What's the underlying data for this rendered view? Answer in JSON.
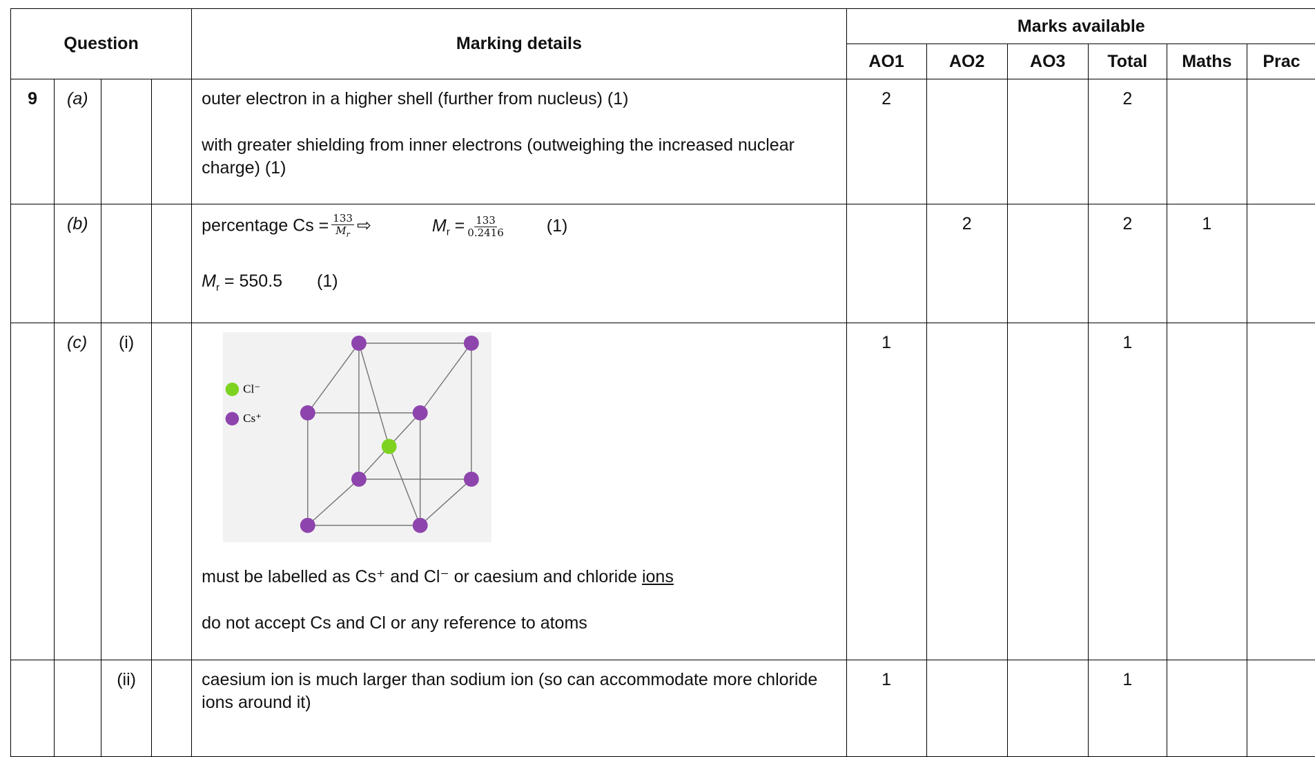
{
  "header": {
    "question": "Question",
    "marking_details": "Marking details",
    "marks_available": "Marks available",
    "columns": [
      "AO1",
      "AO2",
      "AO3",
      "Total",
      "Maths",
      "Prac"
    ]
  },
  "rows": [
    {
      "question": 9,
      "part": "(a)",
      "details": [
        "outer electron in a higher shell (further from nucleus) (1)",
        "with greater shielding from inner electrons (outweighing the increased nuclear charge) (1)"
      ],
      "marks": [
        2,
        null,
        null,
        2,
        null,
        null
      ]
    },
    {
      "part": "(b)",
      "details": [
        {
          "text": "percentage Cs =",
          "frac_num": 133,
          "frac_den": "M",
          "frac_den_sub": "r",
          "arrow": "⇨",
          "lhs": "M",
          "lhs_sub": "r",
          "eq": "=",
          "frac2_num": 133,
          "frac2_den": 0.2416,
          "mark": "(1)"
        },
        {
          "lhs": "M",
          "lhs_sub": "r",
          "eq": "=",
          "value": 550.5,
          "mark": "(1)"
        }
      ],
      "marks": [
        null,
        2,
        null,
        2,
        1,
        null
      ]
    },
    {
      "part": "(c)",
      "sub": "(i)",
      "diagram": {
        "legend": [
          "Cl⁻",
          "Cs⁺"
        ]
      },
      "details": [
        {
          "text": "must be labelled as Cs⁺ and Cl⁻ or caesium and chloride",
          "underlined": "ions"
        },
        "do not accept Cs and Cl or any reference to atoms"
      ],
      "marks": [
        1,
        null,
        null,
        1,
        null,
        null
      ]
    },
    {
      "sub": "(ii)",
      "details": [
        "caesium ion is much larger than sodium ion (so can accommodate more chloride ions around it)"
      ],
      "marks": [
        1,
        null,
        null,
        1,
        null,
        null
      ]
    }
  ]
}
